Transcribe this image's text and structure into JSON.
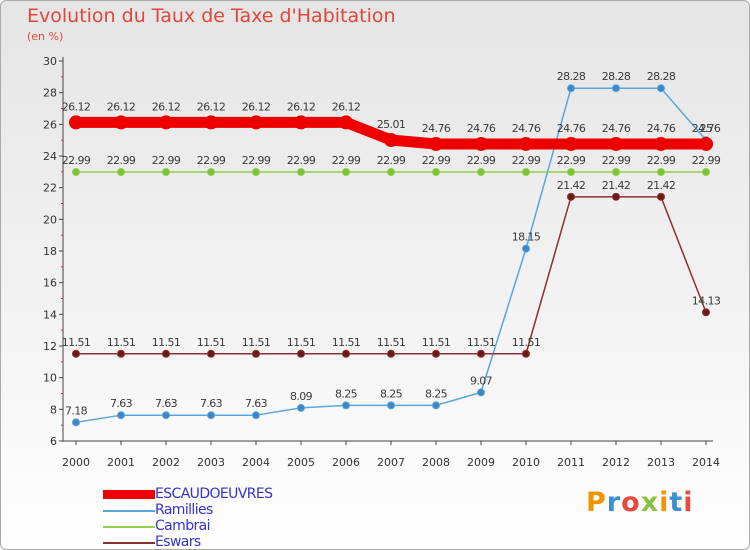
{
  "title": "Evolution du Taux de Taxe d'Habitation",
  "unit": "(en %)",
  "brand": {
    "text": "Proxiti",
    "colors": [
      "#f29400",
      "#3c8fd0",
      "#e94a3f",
      "#8bbf3f",
      "#f29400",
      "#3c8fd0",
      "#e94a3f"
    ]
  },
  "chart_data": {
    "type": "line",
    "x": [
      2000,
      2001,
      2002,
      2003,
      2004,
      2005,
      2006,
      2007,
      2008,
      2009,
      2010,
      2011,
      2012,
      2013,
      2014
    ],
    "ylim": [
      6,
      30
    ],
    "yticks": [
      6,
      8,
      10,
      12,
      14,
      16,
      18,
      20,
      22,
      24,
      26,
      28,
      30
    ],
    "grid": false,
    "legend_position": "bottom-left",
    "series": [
      {
        "name": "ESCAUDOEUVRES",
        "color": "#ee0000",
        "style": "thick",
        "values": [
          26.12,
          26.12,
          26.12,
          26.12,
          26.12,
          26.12,
          26.12,
          25.01,
          24.76,
          24.76,
          24.76,
          24.76,
          24.76,
          24.76,
          24.76
        ],
        "labels": [
          "26.12",
          "26.12",
          "26.12",
          "26.12",
          "26.12",
          "26.12",
          "26.12",
          "25.01",
          "24.76",
          "24.76",
          "24.76",
          "24.76",
          "24.76",
          "24.76",
          "24.76"
        ]
      },
      {
        "name": "Ramillies",
        "color": "#5aa6dc",
        "marker": "#3f86c4",
        "values": [
          7.18,
          7.63,
          7.63,
          7.63,
          7.63,
          8.09,
          8.25,
          8.25,
          8.25,
          9.07,
          18.15,
          28.28,
          28.28,
          28.28,
          25
        ],
        "labels": [
          "7.18",
          "7.63",
          "7.63",
          "7.63",
          "7.63",
          "8.09",
          "8.25",
          "8.25",
          "8.25",
          "9.07",
          "18.15",
          "28.28",
          "28.28",
          "28.28",
          "25"
        ]
      },
      {
        "name": "Cambrai",
        "color": "#8ed14a",
        "marker": "#7cc23a",
        "values": [
          22.99,
          22.99,
          22.99,
          22.99,
          22.99,
          22.99,
          22.99,
          22.99,
          22.99,
          22.99,
          22.99,
          22.99,
          22.99,
          22.99,
          22.99
        ],
        "labels": [
          "22.99",
          "22.99",
          "22.99",
          "22.99",
          "22.99",
          "22.99",
          "22.99",
          "22.99",
          "22.99",
          "22.99",
          "22.99",
          "22.99",
          "22.99",
          "22.99",
          "22.99"
        ]
      },
      {
        "name": "Eswars",
        "color": "#8a3030",
        "marker": "#6b1a1a",
        "values": [
          11.51,
          11.51,
          11.51,
          11.51,
          11.51,
          11.51,
          11.51,
          11.51,
          11.51,
          11.51,
          11.51,
          21.42,
          21.42,
          21.42,
          14.13
        ],
        "labels": [
          "11.51",
          "11.51",
          "11.51",
          "11.51",
          "11.51",
          "11.51",
          "11.51",
          "11.51",
          "11.51",
          "11.51",
          "11.51",
          "21.42",
          "21.42",
          "21.42",
          "14.13"
        ]
      }
    ]
  }
}
